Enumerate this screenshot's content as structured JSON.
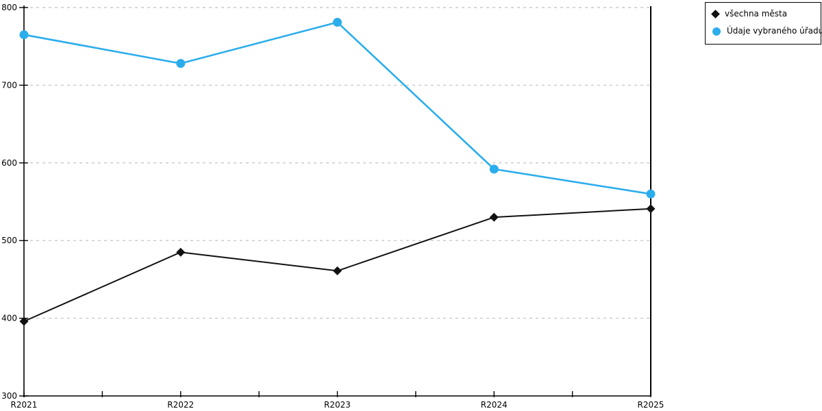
{
  "chart_data": {
    "type": "line",
    "title": "",
    "xlabel": "",
    "ylabel": "",
    "categories": [
      "R2021",
      "R2022",
      "R2023",
      "R2024",
      "R2025"
    ],
    "series": [
      {
        "name": "všechna města",
        "marker": "diamond",
        "color": "#111111",
        "values": [
          396,
          485,
          461,
          530,
          541
        ]
      },
      {
        "name": "Údaje vybraného úřadu",
        "marker": "circle",
        "color": "#2badec",
        "values": [
          765,
          728,
          781,
          592,
          560
        ]
      }
    ],
    "ylim": [
      300,
      800
    ],
    "yticks": [
      300,
      400,
      500,
      600,
      700,
      800
    ],
    "grid": "horizontal dashed gridlines at each y tick",
    "gridline_color": "#c8c8c8",
    "axis_color": "#000000",
    "legend_position": "top-right",
    "legend_border": "#000000"
  }
}
